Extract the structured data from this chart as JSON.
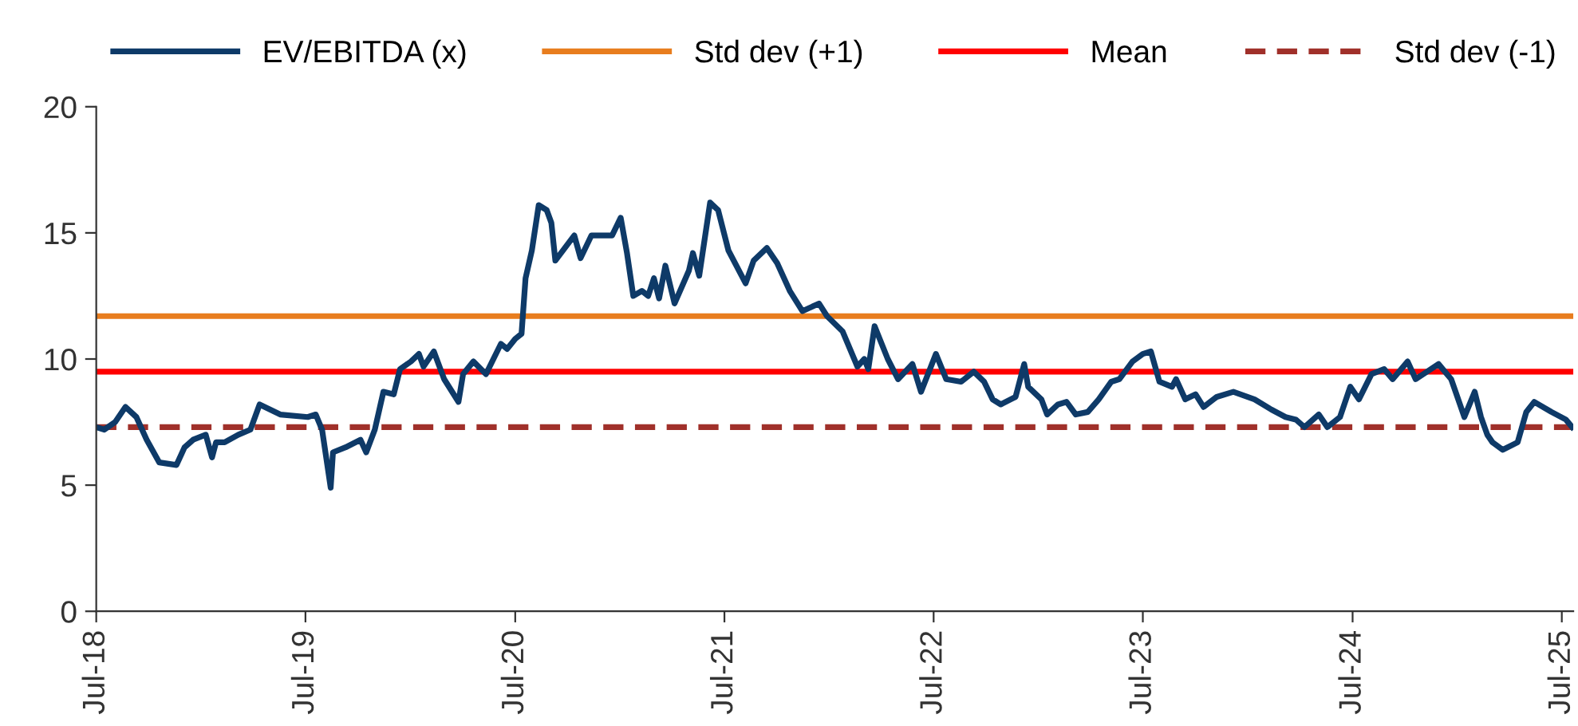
{
  "chart_data": {
    "type": "line",
    "legend": "top",
    "grid": false,
    "marker": "none",
    "line_style": "solid",
    "x": [
      "2018-07-01",
      "2018-07-15",
      "2018-08-03",
      "2018-08-21",
      "2018-09-09",
      "2018-09-27",
      "2018-10-19",
      "2018-11-18",
      "2018-12-02",
      "2018-12-17",
      "2019-01-08",
      "2019-01-19",
      "2019-01-26",
      "2019-02-10",
      "2019-03-06",
      "2019-03-27",
      "2019-04-12",
      "2019-05-18",
      "2019-07-05",
      "2019-07-19",
      "2019-07-30",
      "2019-08-14",
      "2019-08-18",
      "2019-09-09",
      "2019-10-05",
      "2019-10-15",
      "2019-10-30",
      "2019-11-14",
      "2019-12-02",
      "2019-12-13",
      "2020-01-01",
      "2020-01-15",
      "2020-01-23",
      "2020-02-10",
      "2020-02-28",
      "2020-03-24",
      "2020-04-01",
      "2020-04-19",
      "2020-05-11",
      "2020-06-06",
      "2020-06-17",
      "2020-07-01",
      "2020-07-12",
      "2020-07-19",
      "2020-07-30",
      "2020-08-11",
      "2020-08-25",
      "2020-09-02",
      "2020-09-09",
      "2020-10-12",
      "2020-10-23",
      "2020-11-11",
      "2020-12-17",
      "2021-01-01",
      "2021-01-12",
      "2021-01-23",
      "2021-02-07",
      "2021-02-18",
      "2021-02-28",
      "2021-03-09",
      "2021-03-20",
      "2021-04-05",
      "2021-04-30",
      "2021-05-07",
      "2021-05-18",
      "2021-06-06",
      "2021-06-20",
      "2021-07-08",
      "2021-08-07",
      "2021-08-21",
      "2021-09-13",
      "2021-10-01",
      "2021-10-23",
      "2021-11-14",
      "2021-12-13",
      "2021-12-27",
      "2022-01-23",
      "2022-02-18",
      "2022-03-02",
      "2022-03-09",
      "2022-03-20",
      "2022-04-12",
      "2022-04-30",
      "2022-05-25",
      "2022-06-09",
      "2022-07-05",
      "2022-07-23",
      "2022-08-18",
      "2022-09-09",
      "2022-09-27",
      "2022-10-12",
      "2022-10-26",
      "2022-11-21",
      "2022-12-06",
      "2022-12-13",
      "2023-01-05",
      "2023-01-15",
      "2023-02-03",
      "2023-02-18",
      "2023-03-06",
      "2023-03-27",
      "2023-04-15",
      "2023-05-07",
      "2023-05-21",
      "2023-06-13",
      "2023-07-01",
      "2023-07-15",
      "2023-07-30",
      "2023-08-21",
      "2023-08-28",
      "2023-09-13",
      "2023-10-01",
      "2023-10-15",
      "2023-11-07",
      "2023-12-06",
      "2024-01-12",
      "2024-02-10",
      "2024-03-06",
      "2024-03-24",
      "2024-04-08",
      "2024-05-03",
      "2024-05-18",
      "2024-06-09",
      "2024-06-27",
      "2024-07-12",
      "2024-08-03",
      "2024-08-25",
      "2024-09-09",
      "2024-10-05",
      "2024-10-19",
      "2024-11-28",
      "2024-12-20",
      "2025-01-12",
      "2025-01-30",
      "2025-02-10",
      "2025-02-21",
      "2025-03-02",
      "2025-03-20",
      "2025-04-15",
      "2025-04-30",
      "2025-05-14",
      "2025-06-13",
      "2025-07-08",
      "2025-07-19"
    ],
    "series": [
      {
        "name": "EV/EBITDA (x)",
        "color": "#0e3a68",
        "values": [
          7.3,
          7.2,
          7.5,
          8.1,
          7.7,
          6.8,
          5.9,
          5.8,
          6.5,
          6.8,
          7.0,
          6.1,
          6.7,
          6.7,
          7.0,
          7.2,
          8.2,
          7.8,
          7.7,
          7.8,
          7.2,
          4.9,
          6.3,
          6.5,
          6.8,
          6.3,
          7.2,
          8.7,
          8.6,
          9.6,
          9.9,
          10.2,
          9.7,
          10.3,
          9.2,
          8.3,
          9.4,
          9.9,
          9.4,
          10.6,
          10.4,
          10.8,
          11.0,
          13.2,
          14.3,
          16.1,
          15.9,
          15.4,
          13.9,
          14.9,
          14.0,
          14.9,
          14.9,
          15.6,
          14.2,
          12.5,
          12.7,
          12.5,
          13.2,
          12.4,
          13.7,
          12.2,
          13.5,
          14.2,
          13.3,
          16.2,
          15.9,
          14.3,
          13.0,
          13.9,
          14.4,
          13.8,
          12.7,
          11.9,
          12.2,
          11.7,
          11.1,
          9.7,
          10.0,
          9.6,
          11.3,
          10.0,
          9.2,
          9.8,
          8.7,
          10.2,
          9.2,
          9.1,
          9.5,
          9.1,
          8.4,
          8.2,
          8.5,
          9.8,
          8.9,
          8.4,
          7.8,
          8.2,
          8.3,
          7.8,
          7.9,
          8.4,
          9.1,
          9.2,
          9.9,
          10.2,
          10.3,
          9.1,
          8.9,
          9.2,
          8.4,
          8.6,
          8.1,
          8.5,
          8.7,
          8.4,
          8.0,
          7.7,
          7.6,
          7.3,
          7.8,
          7.3,
          7.7,
          8.9,
          8.4,
          9.4,
          9.6,
          9.2,
          9.9,
          9.2,
          9.8,
          9.2,
          7.7,
          8.7,
          7.7,
          7.0,
          6.7,
          6.4,
          6.7,
          7.9,
          8.3,
          7.9,
          7.6,
          7.3
        ]
      }
    ],
    "ref_lines": [
      {
        "axis": "y",
        "value": 11.7,
        "label": "Std dev (+1)",
        "color": "#e87d1e",
        "line_style": "solid"
      },
      {
        "axis": "y",
        "value": 9.5,
        "label": "Mean",
        "color": "#ff0000",
        "line_style": "solid"
      },
      {
        "axis": "y",
        "value": 7.3,
        "label": "Std dev (-1)",
        "color": "#a0302a",
        "line_style": "dashed"
      }
    ],
    "xlim": [
      "2018-07-01",
      "2025-07-21"
    ],
    "xticks": [
      {
        "value": "2018-07-01",
        "label": "Jul-18"
      },
      {
        "value": "2019-07-01",
        "label": "Jul-19"
      },
      {
        "value": "2020-07-01",
        "label": "Jul-20"
      },
      {
        "value": "2021-07-01",
        "label": "Jul-21"
      },
      {
        "value": "2022-07-01",
        "label": "Jul-22"
      },
      {
        "value": "2023-07-01",
        "label": "Jul-23"
      },
      {
        "value": "2024-07-01",
        "label": "Jul-24"
      },
      {
        "value": "2025-07-01",
        "label": "Jul-25"
      }
    ],
    "ylim": [
      0,
      20
    ],
    "yticks": [
      0,
      5,
      10,
      15,
      20
    ]
  }
}
